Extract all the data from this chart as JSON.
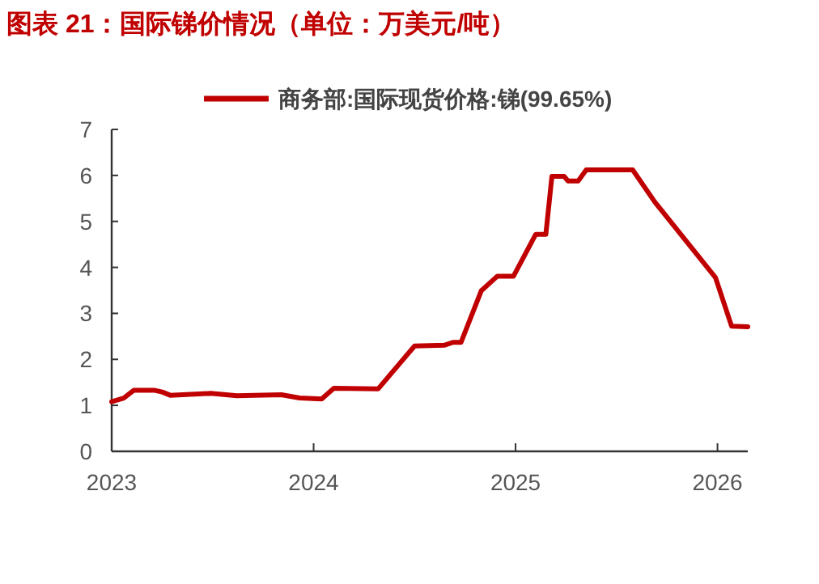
{
  "chart_data": {
    "type": "line",
    "title": "图表 21：国际锑价情况（单位：万美元/吨）",
    "x": [
      2023.0,
      2023.06,
      2023.11,
      2023.21,
      2023.25,
      2023.29,
      2023.49,
      2023.62,
      2023.84,
      2023.93,
      2024.04,
      2024.1,
      2024.32,
      2024.5,
      2024.65,
      2024.69,
      2024.73,
      2024.83,
      2024.91,
      2024.99,
      2025.1,
      2025.15,
      2025.18,
      2025.24,
      2025.26,
      2025.31,
      2025.35,
      2025.58,
      2025.69,
      2025.99,
      2026.07,
      2026.15
    ],
    "series": [
      {
        "name": "商务部:国际现货价格:锑(99.65%)",
        "color": "#c00000",
        "values": [
          1.08,
          1.16,
          1.33,
          1.33,
          1.29,
          1.22,
          1.26,
          1.21,
          1.23,
          1.16,
          1.14,
          1.37,
          1.36,
          2.29,
          2.31,
          2.37,
          2.37,
          3.49,
          3.81,
          3.81,
          4.72,
          4.72,
          5.98,
          5.98,
          5.88,
          5.88,
          6.12,
          6.12,
          5.42,
          3.78,
          2.72,
          2.71
        ]
      }
    ],
    "xlim": [
      2023,
      2026.15
    ],
    "xticks": [
      2023,
      2024,
      2025,
      2026
    ],
    "ylim": [
      0,
      7
    ],
    "yticks": [
      0,
      1,
      2,
      3,
      4,
      5,
      6,
      7
    ],
    "grid": false,
    "legend": "top",
    "marker": "none",
    "line_style": "solid"
  }
}
